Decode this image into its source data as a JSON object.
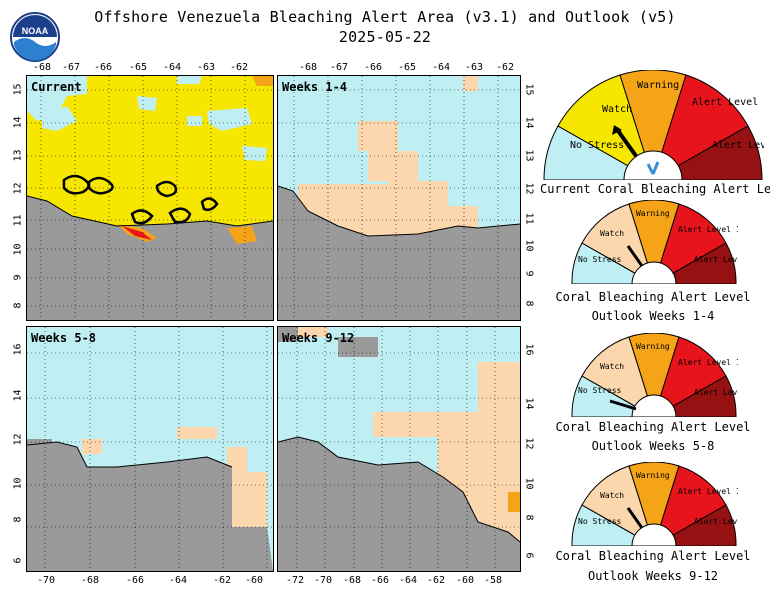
{
  "header": {
    "logo_text": "NOAA",
    "title_line1": "Offshore Venezuela Bleaching Alert Area (v3.1) and Outlook (v5)",
    "title_line2": "2025-05-22"
  },
  "panels": {
    "current": {
      "label": "Current"
    },
    "weeks1_4": {
      "label": "Weeks 1-4"
    },
    "weeks5_8": {
      "label": "Weeks 5-8"
    },
    "weeks9_12": {
      "label": "Weeks 9-12"
    }
  },
  "axes": {
    "top_lon_ticks": [
      "-68",
      "-67",
      "-66",
      "-65",
      "-64",
      "-63",
      "-62"
    ],
    "top_lat_ticks": [
      "15",
      "14",
      "13",
      "12",
      "11",
      "10",
      "9",
      "8"
    ],
    "bottom_left_lon_ticks": [
      "-70",
      "-68",
      "-66",
      "-64",
      "-62",
      "-60"
    ],
    "bottom_right_lon_ticks": [
      "-72",
      "-70",
      "-68",
      "-66",
      "-64",
      "-62",
      "-60",
      "-58"
    ],
    "bottom_lat_ticks": [
      "16",
      "14",
      "12",
      "10",
      "8",
      "6"
    ]
  },
  "gauge_labels": {
    "no_stress": "No Stress",
    "watch": "Watch",
    "warning": "Warning",
    "alert1": "Alert Level 1",
    "alert2": "Alert Level 2"
  },
  "gauges": [
    {
      "caption1": "Current Coral Bleaching Alert Level",
      "caption2": "",
      "level": "watch"
    },
    {
      "caption1": "Coral Bleaching Alert Level",
      "caption2": "Outlook Weeks 1-4",
      "level": "watch"
    },
    {
      "caption1": "Coral Bleaching Alert Level",
      "caption2": "Outlook Weeks 5-8",
      "level": "no_stress"
    },
    {
      "caption1": "Coral Bleaching Alert Level",
      "caption2": "Outlook Weeks 9-12",
      "level": "watch"
    }
  ],
  "colors": {
    "no_stress": "#bfeff2",
    "watch": "#f6e600",
    "watch_light": "#fcd7ad",
    "warning": "#f5a418",
    "alert1": "#e8141c",
    "alert2": "#961212",
    "land": "#9a9a9a"
  }
}
